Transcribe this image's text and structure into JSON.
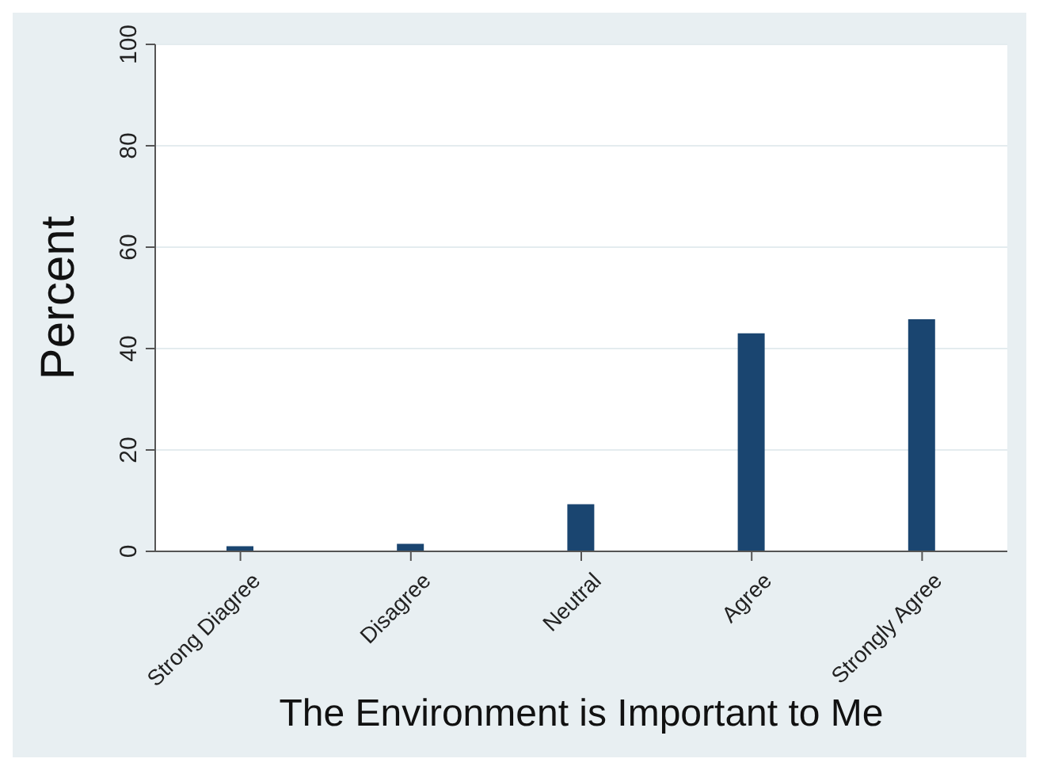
{
  "chart_data": {
    "type": "bar",
    "xlabel": "The Environment is Important to Me",
    "ylabel": "Percent",
    "categories": [
      "Strong Diagree",
      "Disagree",
      "Neutral",
      "Agree",
      "Strongly Agree"
    ],
    "values": [
      1,
      1.5,
      9.3,
      43,
      45.8
    ],
    "color": "#1a4570",
    "ylim": [
      0,
      100
    ],
    "yticks": [
      0,
      20,
      40,
      60,
      80,
      100
    ],
    "grid": "y"
  }
}
